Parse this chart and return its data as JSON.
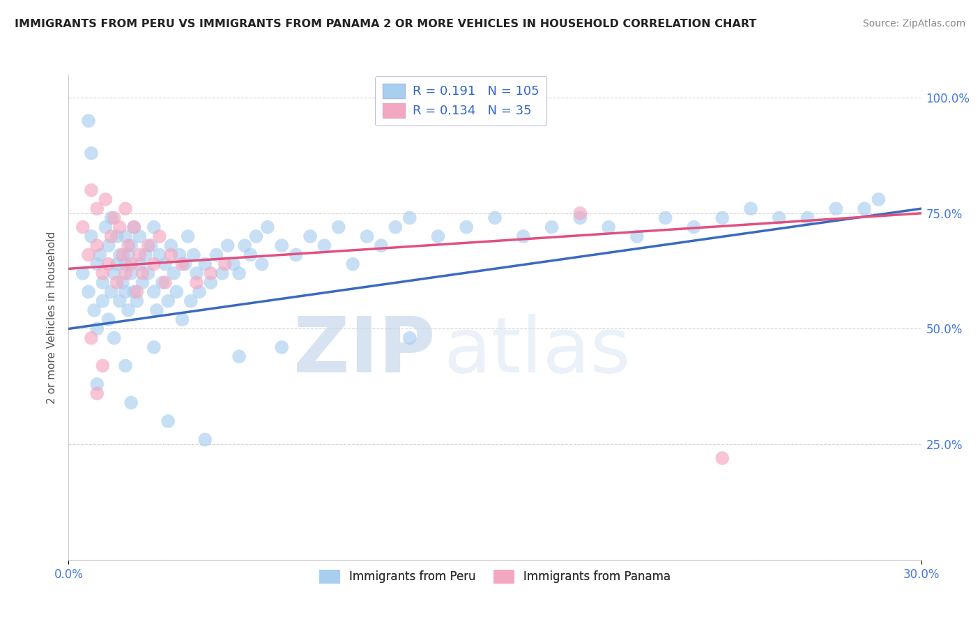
{
  "title": "IMMIGRANTS FROM PERU VS IMMIGRANTS FROM PANAMA 2 OR MORE VEHICLES IN HOUSEHOLD CORRELATION CHART",
  "source": "Source: ZipAtlas.com",
  "ylabel": "2 or more Vehicles in Household",
  "x_min": 0.0,
  "x_max": 0.3,
  "y_min": 0.0,
  "y_max": 1.05,
  "x_ticks": [
    0.0,
    0.05,
    0.1,
    0.15,
    0.2,
    0.25,
    0.3
  ],
  "y_ticks": [
    0.0,
    0.25,
    0.5,
    0.75,
    1.0
  ],
  "y_tick_labels": [
    "",
    "25.0%",
    "50.0%",
    "75.0%",
    "100.0%"
  ],
  "peru_color": "#a8cef0",
  "panama_color": "#f4a7c0",
  "peru_line_color": "#3a6abf",
  "panama_line_color": "#e05080",
  "peru_R": 0.191,
  "peru_N": 105,
  "panama_R": 0.134,
  "panama_N": 35,
  "legend_label_peru": "Immigrants from Peru",
  "legend_label_panama": "Immigrants from Panama",
  "watermark_zip": "ZIP",
  "watermark_atlas": "atlas",
  "background_color": "#ffffff",
  "grid_color": "#cccccc",
  "title_color": "#222222",
  "tick_color_right": "#4477dd",
  "tick_color_bottom": "#4477dd",
  "peru_scatter_x": [
    0.005,
    0.007,
    0.008,
    0.009,
    0.01,
    0.01,
    0.011,
    0.012,
    0.012,
    0.013,
    0.014,
    0.014,
    0.015,
    0.015,
    0.016,
    0.016,
    0.017,
    0.017,
    0.018,
    0.018,
    0.019,
    0.02,
    0.02,
    0.02,
    0.021,
    0.021,
    0.022,
    0.022,
    0.023,
    0.023,
    0.024,
    0.025,
    0.025,
    0.026,
    0.027,
    0.028,
    0.029,
    0.03,
    0.03,
    0.031,
    0.032,
    0.033,
    0.034,
    0.035,
    0.036,
    0.037,
    0.038,
    0.039,
    0.04,
    0.041,
    0.042,
    0.043,
    0.044,
    0.045,
    0.046,
    0.048,
    0.05,
    0.052,
    0.054,
    0.056,
    0.058,
    0.06,
    0.062,
    0.064,
    0.066,
    0.068,
    0.07,
    0.075,
    0.08,
    0.085,
    0.09,
    0.095,
    0.1,
    0.105,
    0.11,
    0.115,
    0.12,
    0.13,
    0.14,
    0.15,
    0.16,
    0.17,
    0.18,
    0.19,
    0.2,
    0.21,
    0.22,
    0.23,
    0.24,
    0.25,
    0.26,
    0.27,
    0.28,
    0.285,
    0.01,
    0.02,
    0.03,
    0.06,
    0.12,
    0.007,
    0.008,
    0.022,
    0.035,
    0.048,
    0.075
  ],
  "peru_scatter_y": [
    0.62,
    0.58,
    0.7,
    0.54,
    0.64,
    0.5,
    0.66,
    0.6,
    0.56,
    0.72,
    0.52,
    0.68,
    0.58,
    0.74,
    0.62,
    0.48,
    0.64,
    0.7,
    0.56,
    0.66,
    0.6,
    0.64,
    0.58,
    0.7,
    0.54,
    0.66,
    0.62,
    0.68,
    0.58,
    0.72,
    0.56,
    0.64,
    0.7,
    0.6,
    0.66,
    0.62,
    0.68,
    0.58,
    0.72,
    0.54,
    0.66,
    0.6,
    0.64,
    0.56,
    0.68,
    0.62,
    0.58,
    0.66,
    0.52,
    0.64,
    0.7,
    0.56,
    0.66,
    0.62,
    0.58,
    0.64,
    0.6,
    0.66,
    0.62,
    0.68,
    0.64,
    0.62,
    0.68,
    0.66,
    0.7,
    0.64,
    0.72,
    0.68,
    0.66,
    0.7,
    0.68,
    0.72,
    0.64,
    0.7,
    0.68,
    0.72,
    0.74,
    0.7,
    0.72,
    0.74,
    0.7,
    0.72,
    0.74,
    0.72,
    0.7,
    0.74,
    0.72,
    0.74,
    0.76,
    0.74,
    0.74,
    0.76,
    0.76,
    0.78,
    0.38,
    0.42,
    0.46,
    0.44,
    0.48,
    0.95,
    0.88,
    0.34,
    0.3,
    0.26,
    0.46
  ],
  "panama_scatter_x": [
    0.005,
    0.007,
    0.008,
    0.01,
    0.01,
    0.012,
    0.013,
    0.014,
    0.015,
    0.016,
    0.017,
    0.018,
    0.019,
    0.02,
    0.02,
    0.021,
    0.022,
    0.023,
    0.024,
    0.025,
    0.026,
    0.028,
    0.03,
    0.032,
    0.034,
    0.036,
    0.04,
    0.045,
    0.05,
    0.055,
    0.008,
    0.012,
    0.18,
    0.01,
    0.23
  ],
  "panama_scatter_y": [
    0.72,
    0.66,
    0.8,
    0.68,
    0.76,
    0.62,
    0.78,
    0.64,
    0.7,
    0.74,
    0.6,
    0.72,
    0.66,
    0.76,
    0.62,
    0.68,
    0.64,
    0.72,
    0.58,
    0.66,
    0.62,
    0.68,
    0.64,
    0.7,
    0.6,
    0.66,
    0.64,
    0.6,
    0.62,
    0.64,
    0.48,
    0.42,
    0.75,
    0.36,
    0.22
  ],
  "peru_trend_x0": 0.0,
  "peru_trend_y0": 0.5,
  "peru_trend_x1": 0.3,
  "peru_trend_y1": 0.76,
  "panama_trend_x0": 0.0,
  "panama_trend_y0": 0.63,
  "panama_trend_x1": 0.3,
  "panama_trend_y1": 0.75
}
